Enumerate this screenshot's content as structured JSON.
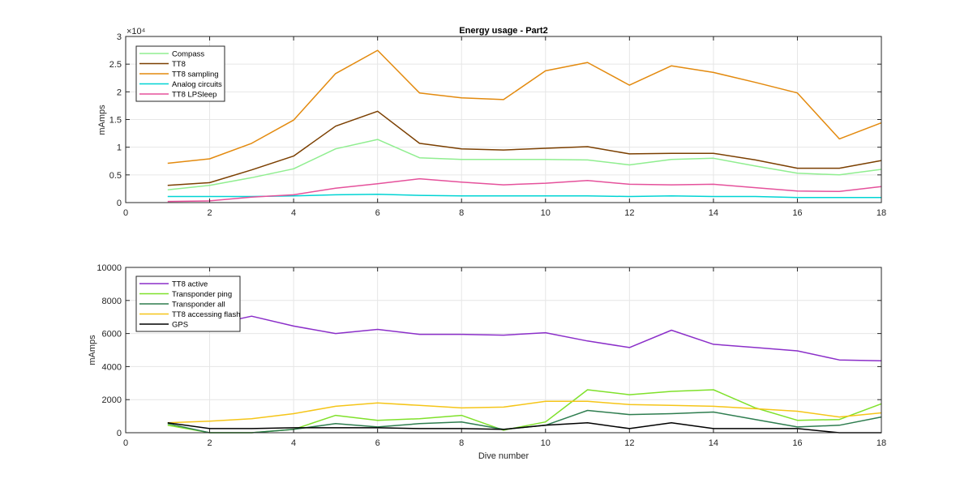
{
  "chart_data": [
    {
      "type": "line",
      "title": "Energy usage - Part2",
      "xlabel": "",
      "ylabel": "mAmps",
      "xlim": [
        0,
        18
      ],
      "ylim": [
        0,
        30000
      ],
      "xticks": [
        0,
        2,
        4,
        6,
        8,
        10,
        12,
        14,
        16,
        18
      ],
      "yticks": [
        0,
        5000,
        10000,
        15000,
        20000,
        25000,
        30000
      ],
      "ytick_labels": [
        "0",
        "0.5",
        "1",
        "1.5",
        "2",
        "2.5",
        "3"
      ],
      "y_exponent_label": "×10⁴",
      "grid": true,
      "legend_position": "top-left",
      "x": [
        1,
        2,
        3,
        4,
        5,
        6,
        7,
        8,
        9,
        10,
        11,
        12,
        13,
        14,
        15,
        16,
        17,
        18
      ],
      "series": [
        {
          "name": "Compass",
          "color": "#90ee90",
          "values": [
            2300,
            3100,
            4500,
            6100,
            9700,
            11400,
            8100,
            7800,
            7800,
            7800,
            7700,
            6800,
            7800,
            8000,
            6600,
            5300,
            5000,
            6000
          ]
        },
        {
          "name": "TT8",
          "color": "#7b3f00",
          "values": [
            3100,
            3600,
            5900,
            8400,
            13800,
            16500,
            10700,
            9700,
            9500,
            9800,
            10100,
            8800,
            8900,
            8900,
            7700,
            6200,
            6200,
            7600
          ]
        },
        {
          "name": "TT8 sampling",
          "color": "#e38a0e",
          "values": [
            7100,
            7900,
            10700,
            14900,
            23300,
            27500,
            19800,
            18900,
            18600,
            23800,
            25300,
            21200,
            24700,
            23500,
            21700,
            19800,
            11500,
            14400
          ]
        },
        {
          "name": "Analog circuits",
          "color": "#00d4d4",
          "values": [
            1100,
            1100,
            1100,
            1200,
            1400,
            1500,
            1300,
            1200,
            1200,
            1200,
            1200,
            1100,
            1200,
            1100,
            1100,
            900,
            900,
            900
          ]
        },
        {
          "name": "TT8 LPSleep",
          "color": "#e5519b",
          "values": [
            200,
            300,
            1000,
            1400,
            2600,
            3400,
            4300,
            3700,
            3200,
            3500,
            4000,
            3300,
            3200,
            3300,
            2700,
            2100,
            2000,
            2900
          ]
        }
      ]
    },
    {
      "type": "line",
      "title": "",
      "xlabel": "Dive number",
      "ylabel": "mAmps",
      "xlim": [
        0,
        18
      ],
      "ylim": [
        0,
        10000
      ],
      "xticks": [
        0,
        2,
        4,
        6,
        8,
        10,
        12,
        14,
        16,
        18
      ],
      "yticks": [
        0,
        2000,
        4000,
        6000,
        8000,
        10000
      ],
      "ytick_labels": [
        "0",
        "2000",
        "4000",
        "6000",
        "8000",
        "10000"
      ],
      "grid": true,
      "legend_position": "top-left",
      "x": [
        1,
        2,
        3,
        4,
        5,
        6,
        7,
        8,
        9,
        10,
        11,
        12,
        13,
        14,
        15,
        16,
        17,
        18
      ],
      "series": [
        {
          "name": "TT8 active",
          "color": "#8b2fc9",
          "values": [
            6200,
            6500,
            7050,
            6450,
            6000,
            6250,
            5950,
            5950,
            5900,
            6050,
            5550,
            5150,
            6200,
            5350,
            5150,
            4950,
            4400,
            4350
          ]
        },
        {
          "name": "Transponder ping",
          "color": "#7fe12a",
          "values": [
            450,
            0,
            0,
            200,
            1050,
            750,
            850,
            1050,
            150,
            650,
            2600,
            2300,
            2500,
            2600,
            1500,
            750,
            800,
            1750
          ]
        },
        {
          "name": "Transponder all",
          "color": "#2e7d4f",
          "values": [
            550,
            0,
            0,
            200,
            550,
            350,
            550,
            650,
            200,
            450,
            1350,
            1100,
            1150,
            1250,
            800,
            350,
            450,
            950
          ]
        },
        {
          "name": "TT8 accessing flash",
          "color": "#f5c518",
          "values": [
            600,
            700,
            850,
            1150,
            1600,
            1800,
            1650,
            1500,
            1550,
            1900,
            1900,
            1700,
            1650,
            1600,
            1450,
            1300,
            950,
            1200
          ]
        },
        {
          "name": "GPS",
          "color": "#000000",
          "values": [
            600,
            250,
            250,
            300,
            300,
            300,
            250,
            250,
            200,
            450,
            600,
            250,
            600,
            250,
            250,
            250,
            0,
            0
          ]
        }
      ]
    }
  ]
}
